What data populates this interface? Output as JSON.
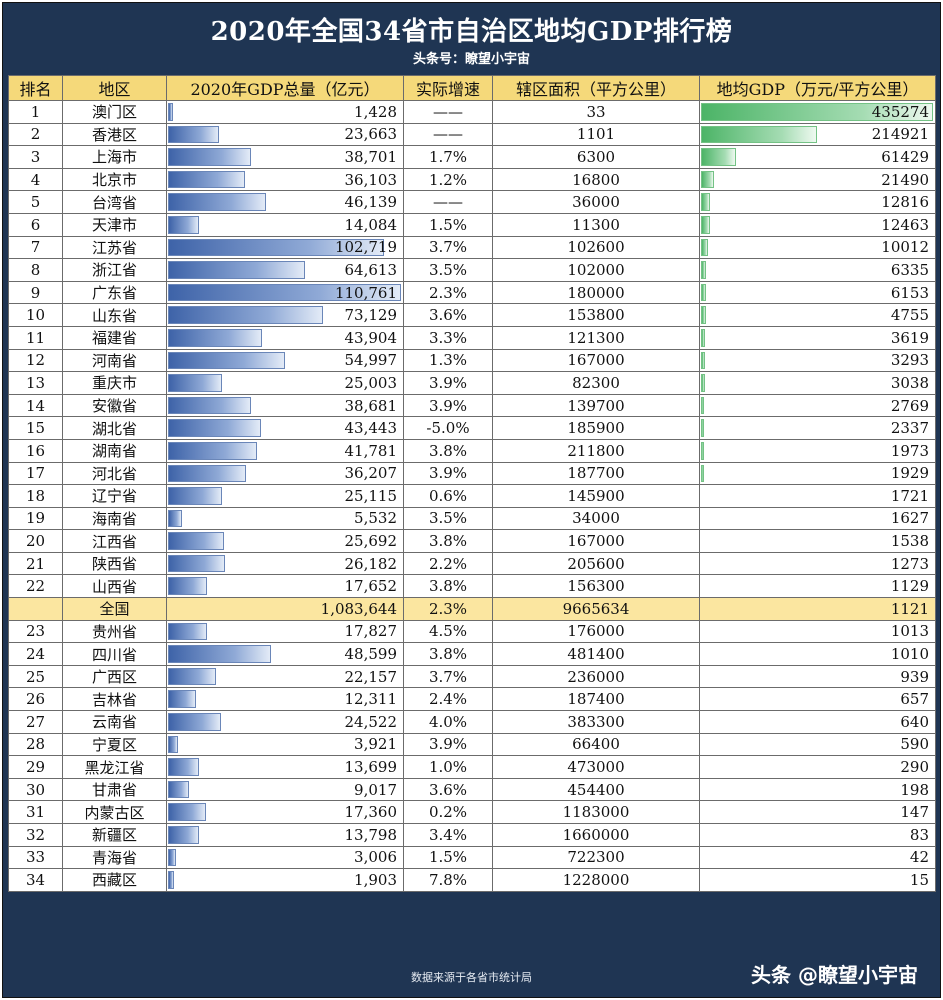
{
  "header": {
    "title": "2020年全国34省市自治区地均GDP排行榜",
    "subtitle": "头条号：瞭望小宇宙"
  },
  "footer": {
    "source": "数据来源于各省市统计局",
    "watermark": "头条 @瞭望小宇宙"
  },
  "colors": {
    "background": "#1f3553",
    "header_fill": "#f5d97a",
    "total_row_fill": "#fbe6a0",
    "gdp_bar": "#3e63a8",
    "density_bar": "#4cb467",
    "negative_text": "#e0231d"
  },
  "chart_data": {
    "type": "table",
    "title": "2020年全国34省市自治区地均GDP排行榜",
    "columns": [
      "排名",
      "地区",
      "2020年GDP总量（亿元）",
      "实际增速",
      "辖区面积（平方公里）",
      "地均GDP（万元/平方公里）"
    ],
    "gdp_bar_max": 110761,
    "density_bar_max": 435274,
    "rows": [
      {
        "rank": "1",
        "region": "澳门区",
        "gdp": 1428,
        "gdp_text": "1,428",
        "growth": "——",
        "area": "33",
        "density": 435274
      },
      {
        "rank": "2",
        "region": "香港区",
        "gdp": 23663,
        "gdp_text": "23,663",
        "growth": "——",
        "area": "1101",
        "density": 214921
      },
      {
        "rank": "3",
        "region": "上海市",
        "gdp": 38701,
        "gdp_text": "38,701",
        "growth": "1.7%",
        "area": "6300",
        "density": 61429
      },
      {
        "rank": "4",
        "region": "北京市",
        "gdp": 36103,
        "gdp_text": "36,103",
        "growth": "1.2%",
        "area": "16800",
        "density": 21490
      },
      {
        "rank": "5",
        "region": "台湾省",
        "gdp": 46139,
        "gdp_text": "46,139",
        "growth": "——",
        "area": "36000",
        "density": 12816
      },
      {
        "rank": "6",
        "region": "天津市",
        "gdp": 14084,
        "gdp_text": "14,084",
        "growth": "1.5%",
        "area": "11300",
        "density": 12463
      },
      {
        "rank": "7",
        "region": "江苏省",
        "gdp": 102719,
        "gdp_text": "102,719",
        "growth": "3.7%",
        "area": "102600",
        "density": 10012
      },
      {
        "rank": "8",
        "region": "浙江省",
        "gdp": 64613,
        "gdp_text": "64,613",
        "growth": "3.5%",
        "area": "102000",
        "density": 6335
      },
      {
        "rank": "9",
        "region": "广东省",
        "gdp": 110761,
        "gdp_text": "110,761",
        "growth": "2.3%",
        "area": "180000",
        "density": 6153
      },
      {
        "rank": "10",
        "region": "山东省",
        "gdp": 73129,
        "gdp_text": "73,129",
        "growth": "3.6%",
        "area": "153800",
        "density": 4755
      },
      {
        "rank": "11",
        "region": "福建省",
        "gdp": 43904,
        "gdp_text": "43,904",
        "growth": "3.3%",
        "area": "121300",
        "density": 3619
      },
      {
        "rank": "12",
        "region": "河南省",
        "gdp": 54997,
        "gdp_text": "54,997",
        "growth": "1.3%",
        "area": "167000",
        "density": 3293
      },
      {
        "rank": "13",
        "region": "重庆市",
        "gdp": 25003,
        "gdp_text": "25,003",
        "growth": "3.9%",
        "area": "82300",
        "density": 3038
      },
      {
        "rank": "14",
        "region": "安徽省",
        "gdp": 38681,
        "gdp_text": "38,681",
        "growth": "3.9%",
        "area": "139700",
        "density": 2769
      },
      {
        "rank": "15",
        "region": "湖北省",
        "gdp": 43443,
        "gdp_text": "43,443",
        "growth": "-5.0%",
        "area": "185900",
        "density": 2337
      },
      {
        "rank": "16",
        "region": "湖南省",
        "gdp": 41781,
        "gdp_text": "41,781",
        "growth": "3.8%",
        "area": "211800",
        "density": 1973
      },
      {
        "rank": "17",
        "region": "河北省",
        "gdp": 36207,
        "gdp_text": "36,207",
        "growth": "3.9%",
        "area": "187700",
        "density": 1929
      },
      {
        "rank": "18",
        "region": "辽宁省",
        "gdp": 25115,
        "gdp_text": "25,115",
        "growth": "0.6%",
        "area": "145900",
        "density": 1721
      },
      {
        "rank": "19",
        "region": "海南省",
        "gdp": 5532,
        "gdp_text": "5,532",
        "growth": "3.5%",
        "area": "34000",
        "density": 1627
      },
      {
        "rank": "20",
        "region": "江西省",
        "gdp": 25692,
        "gdp_text": "25,692",
        "growth": "3.8%",
        "area": "167000",
        "density": 1538
      },
      {
        "rank": "21",
        "region": "陕西省",
        "gdp": 26182,
        "gdp_text": "26,182",
        "growth": "2.2%",
        "area": "205600",
        "density": 1273
      },
      {
        "rank": "22",
        "region": "山西省",
        "gdp": 17652,
        "gdp_text": "17,652",
        "growth": "3.8%",
        "area": "156300",
        "density": 1129
      },
      {
        "rank": "",
        "region": "全国",
        "gdp": 1083644,
        "gdp_text": "1,083,644",
        "growth": "2.3%",
        "area": "9665634",
        "density": 1121,
        "is_total": true
      },
      {
        "rank": "23",
        "region": "贵州省",
        "gdp": 17827,
        "gdp_text": "17,827",
        "growth": "4.5%",
        "area": "176000",
        "density": 1013
      },
      {
        "rank": "24",
        "region": "四川省",
        "gdp": 48599,
        "gdp_text": "48,599",
        "growth": "3.8%",
        "area": "481400",
        "density": 1010
      },
      {
        "rank": "25",
        "region": "广西区",
        "gdp": 22157,
        "gdp_text": "22,157",
        "growth": "3.7%",
        "area": "236000",
        "density": 939
      },
      {
        "rank": "26",
        "region": "吉林省",
        "gdp": 12311,
        "gdp_text": "12,311",
        "growth": "2.4%",
        "area": "187400",
        "density": 657
      },
      {
        "rank": "27",
        "region": "云南省",
        "gdp": 24522,
        "gdp_text": "24,522",
        "growth": "4.0%",
        "area": "383300",
        "density": 640
      },
      {
        "rank": "28",
        "region": "宁夏区",
        "gdp": 3921,
        "gdp_text": "3,921",
        "growth": "3.9%",
        "area": "66400",
        "density": 590
      },
      {
        "rank": "29",
        "region": "黑龙江省",
        "gdp": 13699,
        "gdp_text": "13,699",
        "growth": "1.0%",
        "area": "473000",
        "density": 290
      },
      {
        "rank": "30",
        "region": "甘肃省",
        "gdp": 9017,
        "gdp_text": "9,017",
        "growth": "3.6%",
        "area": "454400",
        "density": 198
      },
      {
        "rank": "31",
        "region": "内蒙古区",
        "gdp": 17360,
        "gdp_text": "17,360",
        "growth": "0.2%",
        "area": "1183000",
        "density": 147
      },
      {
        "rank": "32",
        "region": "新疆区",
        "gdp": 13798,
        "gdp_text": "13,798",
        "growth": "3.4%",
        "area": "1660000",
        "density": 83
      },
      {
        "rank": "33",
        "region": "青海省",
        "gdp": 3006,
        "gdp_text": "3,006",
        "growth": "1.5%",
        "area": "722300",
        "density": 42
      },
      {
        "rank": "34",
        "region": "西藏区",
        "gdp": 1903,
        "gdp_text": "1,903",
        "growth": "7.8%",
        "area": "1228000",
        "density": 15
      }
    ]
  }
}
